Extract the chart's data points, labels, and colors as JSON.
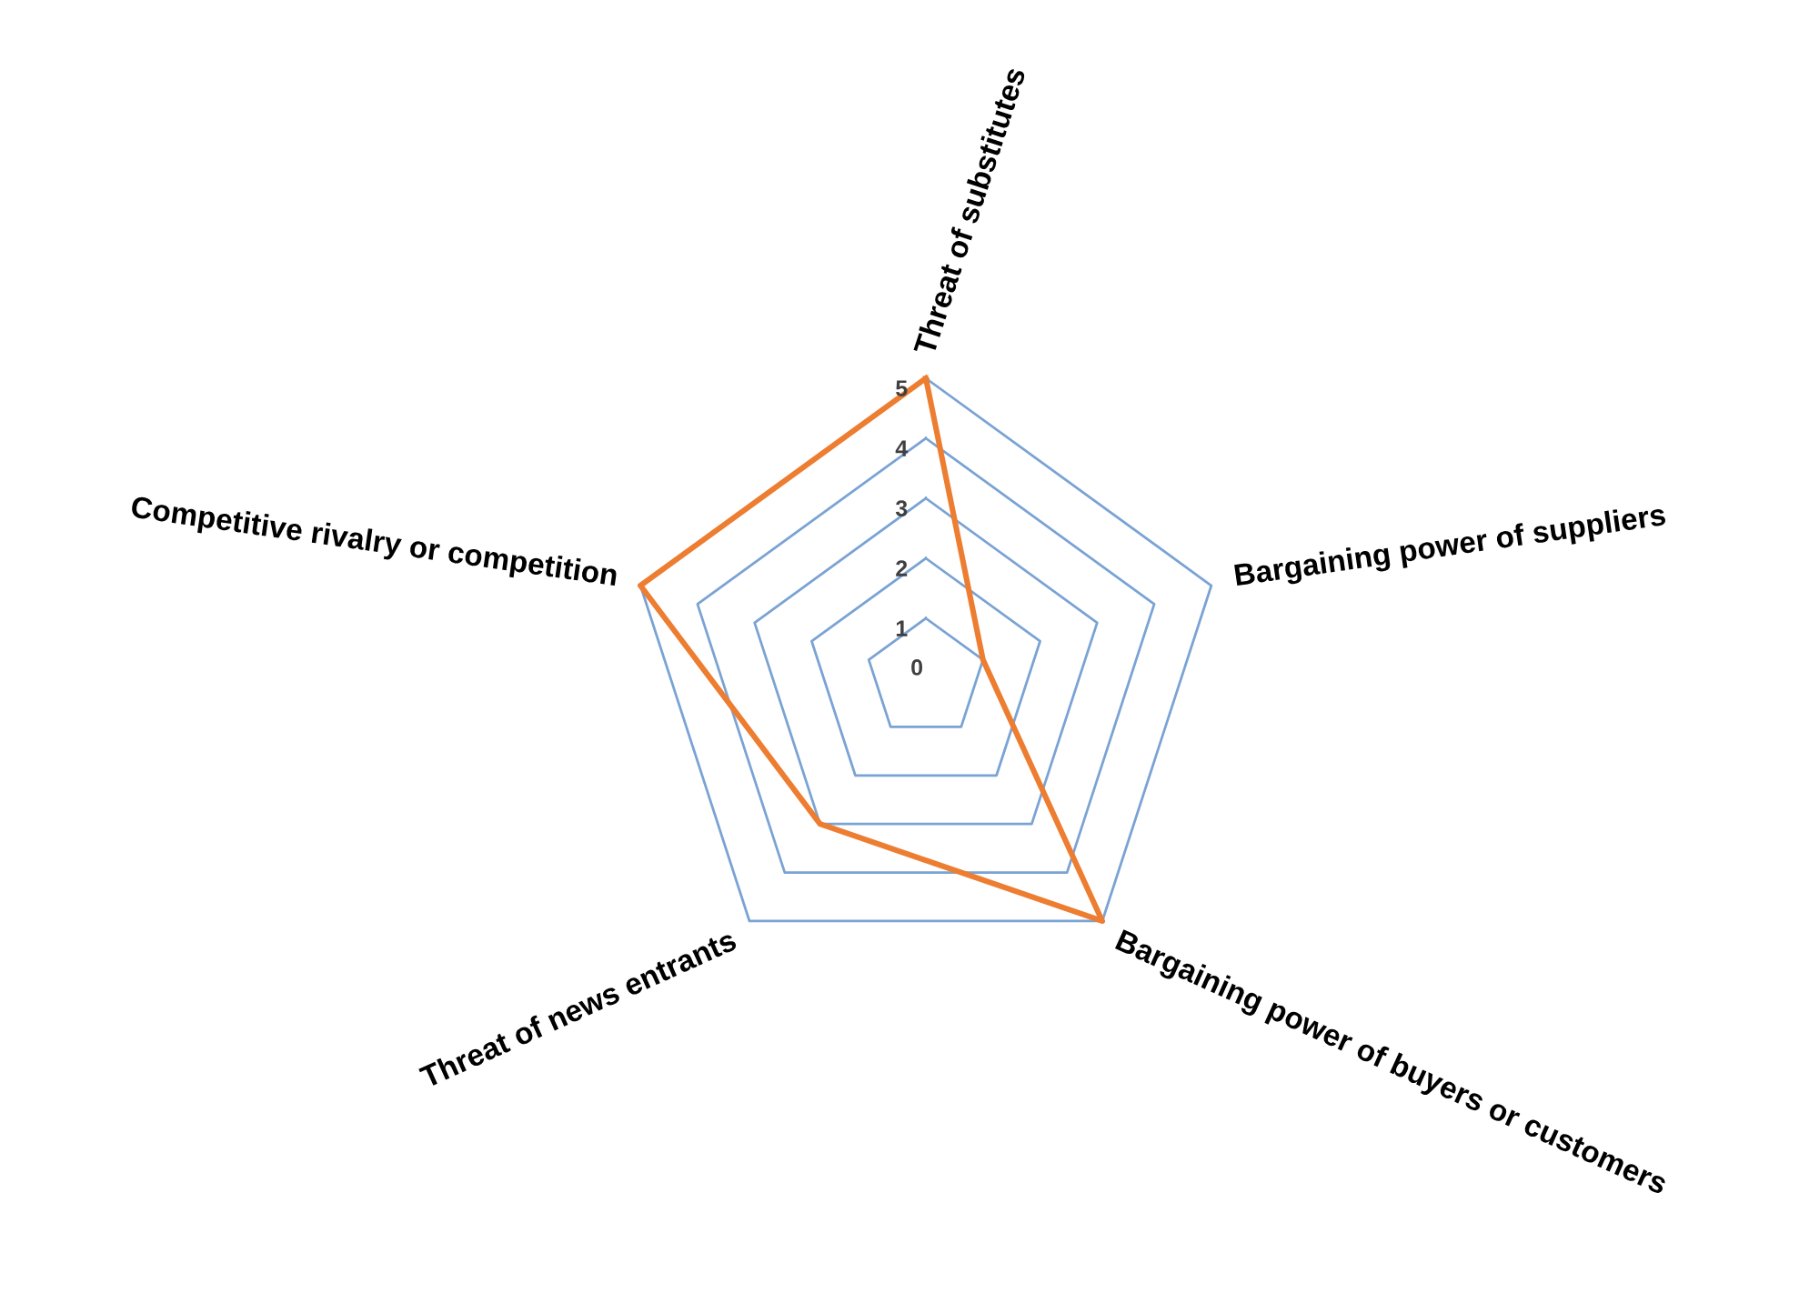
{
  "chart_data": {
    "type": "radar",
    "categories": [
      "Threat of substitutes",
      "Bargaining power of suppliers",
      "Bargaining power of buyers or customers",
      "Threat of news entrants",
      "Competitive rivalry or competition"
    ],
    "series": [
      {
        "color": "#ed7d31",
        "values": [
          5,
          1,
          5,
          3,
          5
        ]
      }
    ],
    "ylim": [
      0,
      5
    ],
    "yticks": [
      0,
      1,
      2,
      3,
      4,
      5
    ],
    "grid": true,
    "marker": "none",
    "line_style": "solid"
  }
}
